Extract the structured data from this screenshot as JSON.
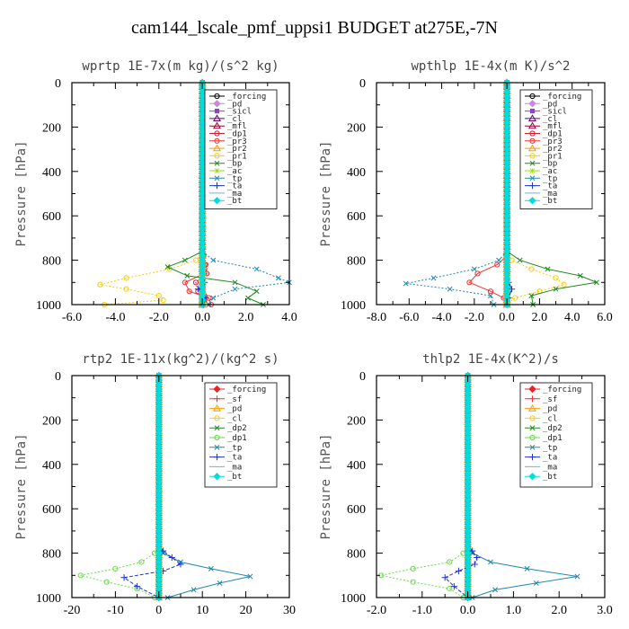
{
  "title": "cam144_lscale_pmf_uppsi1  BUDGET at275E,-7N",
  "chart_data": [
    {
      "type": "line",
      "title": "wprtp  1E-7x(m kg)/(s^2 kg)",
      "ylabel": "Pressure [hPa]",
      "xlim": [
        -6,
        4
      ],
      "ylim": [
        1000,
        0
      ],
      "xticks": [
        -6,
        -4,
        -2,
        0,
        2,
        4
      ],
      "xtick_labels": [
        "-6.0",
        "-4.0",
        "-2.0",
        "0.0",
        "2.0",
        "4.0"
      ],
      "yticks": [
        0,
        200,
        400,
        600,
        800,
        1000
      ],
      "ytick_labels": [
        "0",
        "200",
        "400",
        "600",
        "800",
        "1000"
      ],
      "legend_position": "top-right",
      "series": [
        {
          "name": "_forcing",
          "color": "#000000",
          "marker": "circle",
          "x": [
            0,
            0
          ],
          "y": [
            0,
            1000
          ]
        },
        {
          "name": "_pd",
          "color": "#cc88dd",
          "marker": "diamond",
          "x": [
            0,
            0
          ],
          "y": [
            0,
            1000
          ]
        },
        {
          "name": "_sicl",
          "color": "#8844cc",
          "marker": "square",
          "x": [
            0,
            0
          ],
          "y": [
            0,
            1000
          ]
        },
        {
          "name": "_cl",
          "color": "#660066",
          "marker": "triangle",
          "x": [
            0,
            0
          ],
          "y": [
            0,
            1000
          ]
        },
        {
          "name": "_mfl",
          "color": "#990033",
          "marker": "triangle",
          "x": [
            0,
            0
          ],
          "y": [
            0,
            1000
          ]
        },
        {
          "name": "_dp1",
          "color": "#cc2233",
          "marker": "circle",
          "x": [
            0,
            0,
            0.05,
            0.15,
            0.2,
            -0.3,
            -0.2,
            0.1,
            0.1,
            0
          ],
          "y": [
            0,
            740,
            780,
            820,
            860,
            900,
            940,
            960,
            980,
            1000
          ]
        },
        {
          "name": "_pr3",
          "color": "#ee3333",
          "marker": "circle",
          "x": [
            0,
            0,
            0.1,
            0.1,
            -0.8,
            -0.6,
            0.3,
            0.4
          ],
          "y": [
            0,
            780,
            820,
            860,
            900,
            940,
            970,
            1000
          ]
        },
        {
          "name": "_pr2",
          "color": "#ff9900",
          "marker": "triangle",
          "x": [
            0,
            0,
            0,
            0
          ],
          "y": [
            0,
            880,
            960,
            1000
          ]
        },
        {
          "name": "_pr1",
          "color": "#ffcc00",
          "marker": "circle",
          "x": [
            0,
            0,
            -0.3,
            -1.5,
            -3.5,
            -4.7,
            -3.5,
            -2.0,
            -1.8,
            -4.5
          ],
          "y": [
            0,
            760,
            800,
            840,
            880,
            910,
            930,
            960,
            980,
            1000
          ]
        },
        {
          "name": "_bp",
          "color": "#228822",
          "marker": "x",
          "x": [
            0,
            0,
            -0.8,
            -1.6,
            -0.7,
            1.5,
            2.5,
            2.1,
            2.8
          ],
          "y": [
            0,
            760,
            800,
            830,
            870,
            900,
            940,
            970,
            1000
          ]
        },
        {
          "name": "_ac",
          "color": "#99dd00",
          "marker": "star",
          "x": [
            0,
            0,
            0,
            0
          ],
          "y": [
            0,
            900,
            960,
            1000
          ]
        },
        {
          "name": "_tp",
          "color": "#2288aa",
          "marker": "x",
          "x": [
            0,
            0,
            0.5,
            2.5,
            3.5,
            4.0,
            1.5,
            0.5,
            0.3
          ],
          "y": [
            0,
            760,
            800,
            840,
            880,
            900,
            930,
            970,
            1000
          ]
        },
        {
          "name": "_ta",
          "color": "#2233cc",
          "marker": "plus",
          "x": [
            0,
            0,
            0.1,
            -0.2,
            0.15,
            0.05
          ],
          "y": [
            0,
            860,
            900,
            930,
            970,
            1000
          ]
        },
        {
          "name": "_ma",
          "color": "#88aacc",
          "marker": "none",
          "x": [
            0,
            0
          ],
          "y": [
            0,
            1000
          ]
        },
        {
          "name": "_bt",
          "color": "#00dddd",
          "marker": "diamond",
          "x": [
            0,
            0
          ],
          "y": [
            0,
            1000
          ]
        }
      ]
    },
    {
      "type": "line",
      "title": "wpthlp  1E-4x(m K)/s^2",
      "ylabel": "Pressure [hPa]",
      "xlim": [
        -8,
        6
      ],
      "ylim": [
        1000,
        0
      ],
      "xticks": [
        -8,
        -6,
        -4,
        -2,
        0,
        2,
        4,
        6
      ],
      "xtick_labels": [
        "-8.0",
        "-6.0",
        "-4.0",
        "-2.0",
        "0.0",
        "2.0",
        "4.0",
        "6.0"
      ],
      "yticks": [
        0,
        200,
        400,
        600,
        800,
        1000
      ],
      "ytick_labels": [
        "0",
        "200",
        "400",
        "600",
        "800",
        "1000"
      ],
      "legend_position": "top-right",
      "series": [
        {
          "name": "_forcing",
          "color": "#000000",
          "marker": "circle",
          "x": [
            0,
            0
          ],
          "y": [
            0,
            1000
          ]
        },
        {
          "name": "_pd",
          "color": "#cc88dd",
          "marker": "diamond",
          "x": [
            0,
            0
          ],
          "y": [
            0,
            1000
          ]
        },
        {
          "name": "_sicl",
          "color": "#8844cc",
          "marker": "square",
          "x": [
            0,
            0
          ],
          "y": [
            0,
            1000
          ]
        },
        {
          "name": "_cl",
          "color": "#660066",
          "marker": "triangle",
          "x": [
            0,
            0
          ],
          "y": [
            0,
            1000
          ]
        },
        {
          "name": "_mfl",
          "color": "#990033",
          "marker": "triangle",
          "x": [
            0,
            0
          ],
          "y": [
            0,
            1000
          ]
        },
        {
          "name": "_dp1",
          "color": "#cc2233",
          "marker": "circle",
          "x": [
            0,
            0,
            0,
            0
          ],
          "y": [
            0,
            900,
            960,
            1000
          ]
        },
        {
          "name": "_pr3",
          "color": "#ee3333",
          "marker": "circle",
          "x": [
            0,
            0,
            -0.6,
            -1.8,
            -2.3,
            -1.0,
            -0.2,
            0
          ],
          "y": [
            0,
            780,
            820,
            860,
            900,
            940,
            970,
            1000
          ]
        },
        {
          "name": "_pr2",
          "color": "#ff9900",
          "marker": "triangle",
          "x": [
            0,
            0,
            0,
            0
          ],
          "y": [
            0,
            900,
            960,
            1000
          ]
        },
        {
          "name": "_pr1",
          "color": "#ffcc00",
          "marker": "circle",
          "x": [
            0,
            0,
            0.3,
            1.5,
            3.0,
            3.5,
            2.0,
            0.5,
            0
          ],
          "y": [
            0,
            760,
            800,
            840,
            880,
            910,
            940,
            970,
            1000
          ]
        },
        {
          "name": "_bp",
          "color": "#228822",
          "marker": "x",
          "x": [
            0,
            0,
            0.8,
            2.5,
            4.5,
            5.5,
            3.0,
            1.5,
            1.6
          ],
          "y": [
            0,
            760,
            800,
            840,
            870,
            900,
            930,
            960,
            1000
          ]
        },
        {
          "name": "_ac",
          "color": "#99dd00",
          "marker": "star",
          "x": [
            0,
            0,
            0,
            0
          ],
          "y": [
            0,
            900,
            960,
            1000
          ]
        },
        {
          "name": "_tp",
          "color": "#2288aa",
          "marker": "x",
          "x": [
            0,
            0,
            -0.5,
            -2.0,
            -4.5,
            -6.2,
            -3.5,
            -1.0,
            -0.8
          ],
          "y": [
            0,
            760,
            800,
            840,
            880,
            905,
            930,
            960,
            1000
          ]
        },
        {
          "name": "_ta",
          "color": "#2233cc",
          "marker": "plus",
          "x": [
            0,
            0,
            0.1,
            0.3,
            0.1,
            0
          ],
          "y": [
            0,
            860,
            900,
            930,
            970,
            1000
          ]
        },
        {
          "name": "_ma",
          "color": "#88aacc",
          "marker": "none",
          "x": [
            0,
            0
          ],
          "y": [
            0,
            1000
          ]
        },
        {
          "name": "_bt",
          "color": "#00dddd",
          "marker": "diamond",
          "x": [
            0,
            0
          ],
          "y": [
            0,
            1000
          ]
        }
      ]
    },
    {
      "type": "line",
      "title": "rtp2  1E-11x(kg^2)/(kg^2 s)",
      "ylabel": "Pressure [hPa]",
      "xlim": [
        -20,
        30
      ],
      "ylim": [
        1000,
        0
      ],
      "xticks": [
        -20,
        -10,
        0,
        10,
        20,
        30
      ],
      "xtick_labels": [
        "-20",
        "-10",
        "0",
        "10",
        "20",
        "30"
      ],
      "yticks": [
        0,
        200,
        400,
        600,
        800,
        1000
      ],
      "ytick_labels": [
        "0",
        "200",
        "400",
        "600",
        "800",
        "1000"
      ],
      "legend_position": "top-right",
      "series": [
        {
          "name": "_forcing",
          "color": "#ee2222",
          "marker": "diamond",
          "x": [
            0,
            0
          ],
          "y": [
            0,
            1000
          ]
        },
        {
          "name": "_sf",
          "color": "#ee3333",
          "marker": "plus",
          "x": [
            0,
            0
          ],
          "y": [
            0,
            1000
          ]
        },
        {
          "name": "_pd",
          "color": "#ff9900",
          "marker": "triangle",
          "x": [
            0,
            0
          ],
          "y": [
            0,
            1000
          ]
        },
        {
          "name": "_cl",
          "color": "#ffcc00",
          "marker": "circle",
          "x": [
            0,
            0
          ],
          "y": [
            0,
            1000
          ]
        },
        {
          "name": "_dp2",
          "color": "#228822",
          "marker": "x",
          "x": [
            0,
            0
          ],
          "y": [
            0,
            1000
          ]
        },
        {
          "name": "_dp1",
          "color": "#66dd44",
          "marker": "circle",
          "x": [
            0,
            0,
            -1.0,
            -4.0,
            -10.0,
            -18.0,
            -12.0,
            -5.0,
            -1.0
          ],
          "y": [
            0,
            760,
            800,
            840,
            870,
            900,
            930,
            960,
            1000
          ]
        },
        {
          "name": "_tp",
          "color": "#2288aa",
          "marker": "x",
          "x": [
            0,
            0,
            1.0,
            5.0,
            12.0,
            21.0,
            14.0,
            8.0,
            2.0
          ],
          "y": [
            0,
            760,
            800,
            840,
            870,
            905,
            935,
            965,
            1000
          ]
        },
        {
          "name": "_ta",
          "color": "#2233cc",
          "marker": "plus",
          "x": [
            0,
            0,
            1.0,
            3.0,
            5.0,
            1.0,
            -8.0,
            -5.0,
            0
          ],
          "y": [
            0,
            760,
            790,
            820,
            850,
            880,
            910,
            950,
            1000
          ]
        },
        {
          "name": "_ma",
          "color": "#88aacc",
          "marker": "none",
          "x": [
            0,
            0
          ],
          "y": [
            0,
            1000
          ]
        },
        {
          "name": "_bt",
          "color": "#00dddd",
          "marker": "diamond",
          "x": [
            0,
            0
          ],
          "y": [
            0,
            1000
          ]
        }
      ]
    },
    {
      "type": "line",
      "title": "thlp2  1E-4x(K^2)/s",
      "ylabel": "Pressure [hPa]",
      "xlim": [
        -2,
        3
      ],
      "ylim": [
        1000,
        0
      ],
      "xticks": [
        -2,
        -1,
        0,
        1,
        2,
        3
      ],
      "xtick_labels": [
        "-2.0",
        "-1.0",
        "0.0",
        "1.0",
        "2.0",
        "3.0"
      ],
      "yticks": [
        0,
        200,
        400,
        600,
        800,
        1000
      ],
      "ytick_labels": [
        "0",
        "200",
        "400",
        "600",
        "800",
        "1000"
      ],
      "legend_position": "top-right",
      "series": [
        {
          "name": "_forcing",
          "color": "#ee2222",
          "marker": "diamond",
          "x": [
            0,
            0
          ],
          "y": [
            0,
            1000
          ]
        },
        {
          "name": "_sf",
          "color": "#ee3333",
          "marker": "plus",
          "x": [
            0,
            0
          ],
          "y": [
            0,
            1000
          ]
        },
        {
          "name": "_pd",
          "color": "#ff9900",
          "marker": "triangle",
          "x": [
            0,
            0
          ],
          "y": [
            0,
            1000
          ]
        },
        {
          "name": "_cl",
          "color": "#ffcc00",
          "marker": "circle",
          "x": [
            0,
            0
          ],
          "y": [
            0,
            1000
          ]
        },
        {
          "name": "_dp2",
          "color": "#228822",
          "marker": "x",
          "x": [
            0,
            0
          ],
          "y": [
            0,
            1000
          ]
        },
        {
          "name": "_dp1",
          "color": "#66dd44",
          "marker": "circle",
          "x": [
            0,
            0,
            -0.1,
            -0.4,
            -1.2,
            -1.9,
            -1.2,
            -0.4,
            -0.1
          ],
          "y": [
            0,
            760,
            800,
            840,
            870,
            900,
            930,
            960,
            1000
          ]
        },
        {
          "name": "_tp",
          "color": "#2288aa",
          "marker": "x",
          "x": [
            0,
            0,
            0.1,
            0.5,
            1.3,
            2.4,
            1.5,
            0.6,
            0.1
          ],
          "y": [
            0,
            760,
            800,
            840,
            870,
            905,
            935,
            965,
            1000
          ]
        },
        {
          "name": "_ta",
          "color": "#2233cc",
          "marker": "plus",
          "x": [
            0,
            0,
            0.1,
            0.2,
            0.15,
            -0.2,
            -0.5,
            -0.3,
            0
          ],
          "y": [
            0,
            760,
            790,
            820,
            850,
            880,
            910,
            950,
            1000
          ]
        },
        {
          "name": "_ma",
          "color": "#88aacc",
          "marker": "none",
          "x": [
            0,
            0
          ],
          "y": [
            0,
            1000
          ]
        },
        {
          "name": "_bt",
          "color": "#00dddd",
          "marker": "diamond",
          "x": [
            0,
            0
          ],
          "y": [
            0,
            1000
          ]
        }
      ]
    }
  ]
}
